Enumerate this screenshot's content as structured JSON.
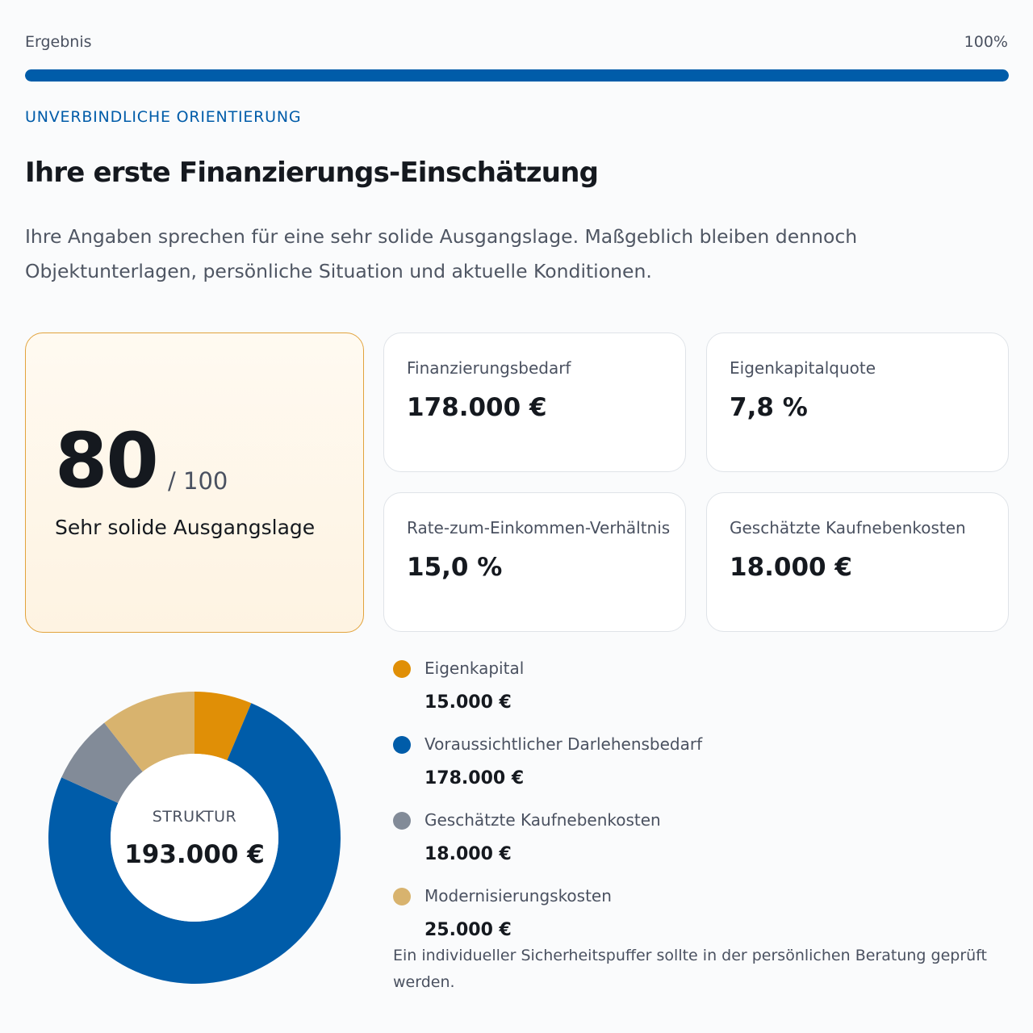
{
  "progress": {
    "label": "Ergebnis",
    "percent_text": "100%",
    "value": 1.0,
    "color": "#005ca9"
  },
  "eyebrow": "UNVERBINDLICHE ORIENTIERUNG",
  "title": "Ihre erste Finanzierungs-Einschätzung",
  "intro": "Ihre Angaben sprechen für eine sehr solide Ausgangslage. Maßgeblich bleiben dennoch Objektunterlagen, persönliche Situation und aktuelle Konditionen.",
  "score": {
    "value": "80",
    "max": "/ 100",
    "label": "Sehr solide Ausgangslage"
  },
  "metrics": [
    {
      "label": "Finanzierungsbedarf",
      "value": "178.000 €"
    },
    {
      "label": "Eigenkapitalquote",
      "value": "7,8 %"
    },
    {
      "label": "Rate-zum-Einkommen-Verhältnis",
      "value": "15,0 %"
    },
    {
      "label": "Geschätzte Kaufnebenkosten",
      "value": "18.000 €"
    }
  ],
  "structure": {
    "center_label": "STRUKTUR",
    "center_value": "193.000 €",
    "segments": [
      {
        "name": "Eigenkapital",
        "value_text": "15.000 €",
        "amount": 15000,
        "color": "#e08f06"
      },
      {
        "name": "Voraussichtlicher Darlehensbedarf",
        "value_text": "178.000 €",
        "amount": 178000,
        "color": "#005ca9"
      },
      {
        "name": "Geschätzte Kaufnebenkosten",
        "value_text": "18.000 €",
        "amount": 18000,
        "color": "#828b98"
      },
      {
        "name": "Modernisierungskosten",
        "value_text": "25.000 €",
        "amount": 25000,
        "color": "#d8b36e"
      }
    ]
  },
  "footnote": "Ein individueller Sicherheitspuffer sollte in der persönlichen Beratung geprüft werden."
}
